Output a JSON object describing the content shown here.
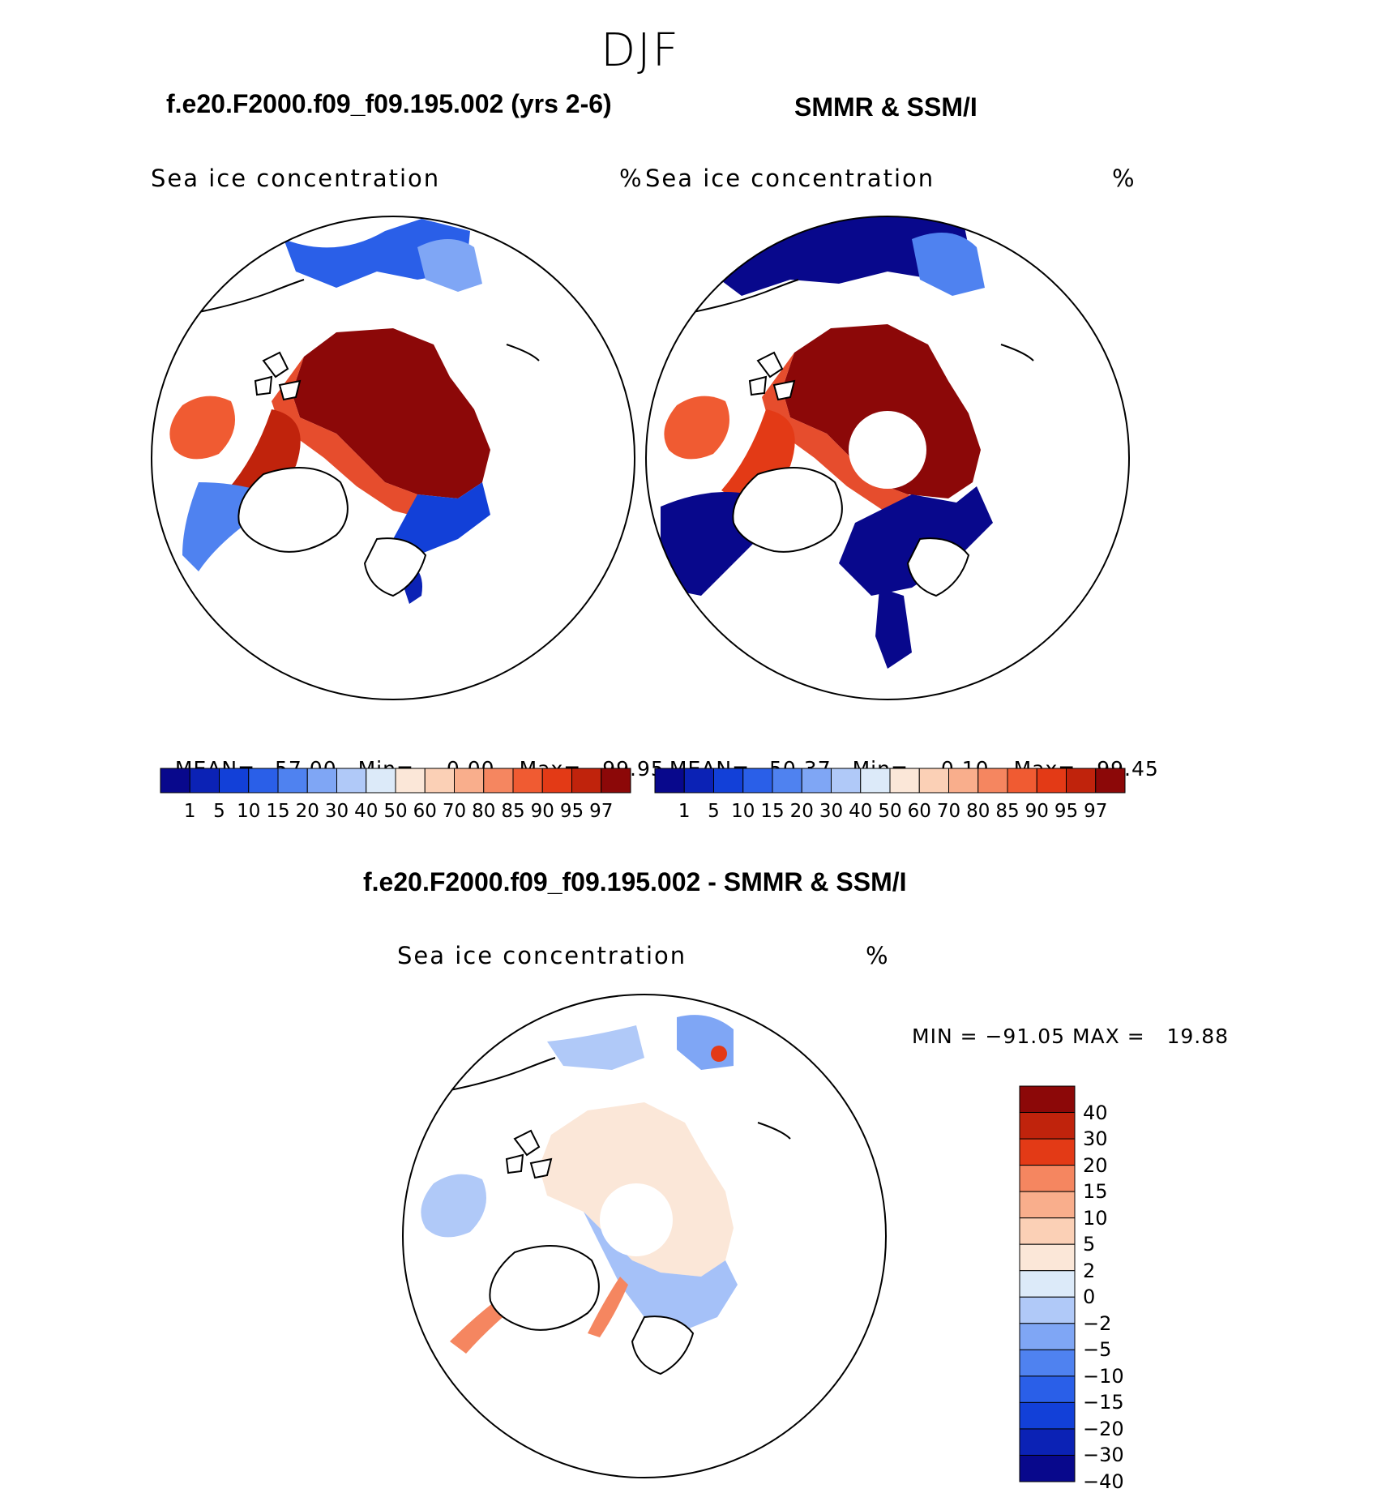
{
  "figure": {
    "season": "DJF",
    "titles": {
      "model": "f.e20.F2000.f09_f09.195.002 (yrs 2-6)",
      "obs": "SMMR & SSM/I",
      "diff": "f.e20.F2000.f09_f09.195.002 - SMMR & SSM/I"
    }
  },
  "panels": {
    "model": {
      "variable": "Sea ice concentration",
      "units": "%",
      "mean_label": "MEAN=",
      "mean": "57.00",
      "min_label": "Min=",
      "min": "0.00",
      "max_label": "Max=",
      "max": "99.95"
    },
    "obs": {
      "variable": "Sea ice concentration",
      "units": "%",
      "mean_label": "MEAN=",
      "mean": "50.37",
      "min_label": "Min=",
      "min": "0.10",
      "max_label": "Max=",
      "max": "99.45"
    },
    "diff": {
      "variable": "Sea ice concentration",
      "units": "%",
      "minmax": "MIN = −91.05 MAX =   19.88"
    }
  },
  "colorbars": {
    "abs": {
      "colors": [
        "#08088c",
        "#0b22b5",
        "#1240d8",
        "#2a5fe8",
        "#4f82f0",
        "#7fa6f5",
        "#b0c9f8",
        "#dceaf9",
        "#fbe7d8",
        "#fbd0b6",
        "#f9ae8c",
        "#f58660",
        "#f05b32",
        "#e33a16",
        "#c0230c",
        "#8c0808"
      ],
      "labels": [
        "1",
        "5",
        "10",
        "15",
        "20",
        "30",
        "40",
        "50",
        "60",
        "70",
        "80",
        "85",
        "90",
        "95",
        "97"
      ]
    },
    "diff": {
      "colors": [
        "#8c0808",
        "#c0230c",
        "#e33a16",
        "#f58660",
        "#f9ae8c",
        "#fbd0b6",
        "#fbe7d8",
        "#dceaf9",
        "#b0c9f8",
        "#7fa6f5",
        "#4f82f0",
        "#2a5fe8",
        "#1240d8",
        "#0b22b5",
        "#08088c"
      ],
      "labels": [
        "40",
        "30",
        "20",
        "15",
        "10",
        "5",
        "2",
        "0",
        "−2",
        "−5",
        "−10",
        "−15",
        "−20",
        "−30",
        "−40"
      ]
    }
  }
}
